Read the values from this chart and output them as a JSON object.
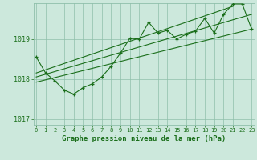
{
  "title": "Graphe pression niveau de la mer (hPa)",
  "x_labels": [
    "0",
    "1",
    "2",
    "3",
    "4",
    "5",
    "6",
    "7",
    "8",
    "9",
    "10",
    "11",
    "12",
    "13",
    "14",
    "15",
    "16",
    "17",
    "18",
    "19",
    "20",
    "21",
    "22",
    "23"
  ],
  "x_values": [
    0,
    1,
    2,
    3,
    4,
    5,
    6,
    7,
    8,
    9,
    10,
    11,
    12,
    13,
    14,
    15,
    16,
    17,
    18,
    19,
    20,
    21,
    22,
    23
  ],
  "main_line_x": [
    0,
    1,
    2,
    3,
    4,
    5,
    6,
    7,
    8,
    9,
    10,
    11,
    12,
    13,
    14,
    15,
    16,
    17,
    18,
    19,
    20,
    21,
    22,
    23
  ],
  "main_line_y": [
    1018.55,
    1018.15,
    1017.95,
    1017.72,
    1017.62,
    1017.78,
    1017.88,
    1018.05,
    1018.32,
    1018.65,
    1019.02,
    1019.0,
    1019.42,
    1019.15,
    1019.22,
    1019.0,
    1019.12,
    1019.2,
    1019.52,
    1019.15,
    1019.62,
    1019.88,
    1019.88,
    1019.25
  ],
  "trend_lines": [
    {
      "x": [
        0,
        23
      ],
      "y": [
        1017.92,
        1019.25
      ]
    },
    {
      "x": [
        0,
        23
      ],
      "y": [
        1018.05,
        1019.62
      ]
    },
    {
      "x": [
        0,
        21
      ],
      "y": [
        1018.15,
        1019.82
      ]
    }
  ],
  "ylim": [
    1016.85,
    1019.9
  ],
  "yticks": [
    1017,
    1018,
    1019
  ],
  "xlim": [
    -0.3,
    23.3
  ],
  "line_color": "#1a6e1a",
  "bg_color": "#cce8dc",
  "grid_color": "#8fbfaa",
  "label_color": "#1a6e1a",
  "title_color": "#1a6e1a",
  "title_fontsize": 6.5,
  "ylabel_fontsize": 6,
  "xlabel_fontsize": 5
}
